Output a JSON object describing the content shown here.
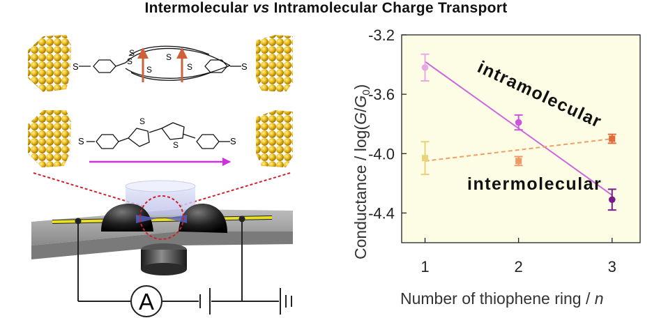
{
  "title": {
    "part1": "Intermolecular ",
    "part2": "vs",
    "part3": " Intramolecular Charge Transport"
  },
  "schematic": {
    "sulfur_label": "S",
    "ammeter_label": "A",
    "colors": {
      "gold": "#e8b820",
      "gold_dark": "#a07a08",
      "spin_arrow": "#d0603a",
      "current_arrow": "#cc33dd",
      "circle_dash": "#d0202a",
      "wire": "#e8e020"
    }
  },
  "chart_data": {
    "type": "scatter",
    "x": [
      1,
      2,
      3
    ],
    "xticks": [
      "1",
      "2",
      "3"
    ],
    "yticks": [
      "-3.2",
      "-3.6",
      "-4.0",
      "-4.4"
    ],
    "xlim": [
      0.75,
      3.3
    ],
    "ylim": [
      -4.6,
      -3.2
    ],
    "xlabel_main": "Number of thiophene ring / ",
    "xlabel_italic": "n",
    "ylabel_main": "Conductance / log(",
    "ylabel_G": "G",
    "ylabel_slash": "/",
    "ylabel_G0": "G",
    "ylabel_sub": "0",
    "ylabel_end": ")",
    "grid": false,
    "series": [
      {
        "name": "intramolecular",
        "values": [
          -3.42,
          -3.79,
          -4.31
        ],
        "errors": [
          0.09,
          0.05,
          0.07
        ],
        "point_colors": [
          "#e8a8e8",
          "#cc55dd",
          "#7a1a8a"
        ],
        "line_color": "#cc66dd",
        "line": "solid",
        "fit": [
          -3.38,
          -4.28
        ]
      },
      {
        "name": "intermolecular",
        "values": [
          -4.03,
          -4.05,
          -3.9
        ],
        "errors": [
          0.11,
          0.03,
          0.03
        ],
        "point_colors": [
          "#e8d27a",
          "#ee9a66",
          "#e06a3a"
        ],
        "line_color": "#f0a060",
        "line": "dashed",
        "fit": [
          -4.05,
          -3.9
        ]
      }
    ]
  }
}
